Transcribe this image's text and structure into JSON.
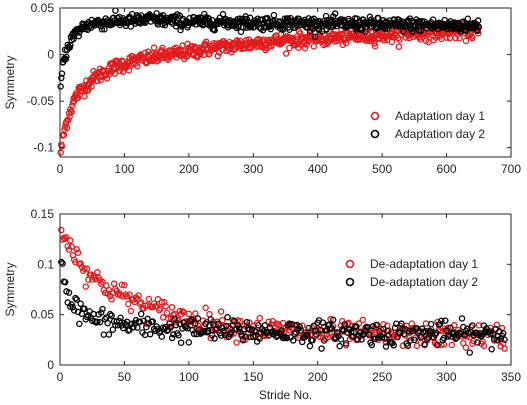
{
  "chart_data": [
    {
      "type": "scatter",
      "xlabel": "",
      "ylabel": "Symmetry",
      "xlim": [
        0,
        700
      ],
      "ylim": [
        -0.11,
        0.05
      ],
      "xticks": [
        0,
        100,
        200,
        300,
        400,
        500,
        600,
        700
      ],
      "yticks": [
        -0.1,
        -0.05,
        0,
        0.05
      ],
      "xtick_labels": [
        "0",
        "100",
        "200",
        "300",
        "400",
        "500",
        "600",
        "700"
      ],
      "ytick_labels": [
        "-0.1",
        "-0.05",
        "0",
        "0.05"
      ],
      "legend_position": "bottom-right",
      "series": [
        {
          "name": "Adaptation day 1",
          "color": "#e31a1c",
          "x": [
            1,
            3,
            5,
            8,
            12,
            16,
            20,
            25,
            30,
            40,
            50,
            60,
            75,
            90,
            110,
            130,
            150,
            175,
            200,
            225,
            250,
            275,
            300,
            325,
            350,
            375,
            400,
            425,
            450,
            475,
            500,
            525,
            550,
            575,
            600,
            625,
            650
          ],
          "y": [
            -0.104,
            -0.097,
            -0.088,
            -0.078,
            -0.068,
            -0.06,
            -0.052,
            -0.045,
            -0.04,
            -0.033,
            -0.027,
            -0.022,
            -0.017,
            -0.012,
            -0.008,
            -0.005,
            -0.002,
            0.0,
            0.003,
            0.006,
            0.008,
            0.01,
            0.012,
            0.014,
            0.015,
            0.016,
            0.017,
            0.018,
            0.019,
            0.02,
            0.021,
            0.022,
            0.023,
            0.024,
            0.024,
            0.025,
            0.025
          ]
        },
        {
          "name": "Adaptation day 2",
          "color": "#000000",
          "x": [
            1,
            3,
            5,
            8,
            12,
            16,
            20,
            25,
            30,
            35,
            40,
            50,
            60,
            75,
            90,
            110,
            130,
            145,
            175,
            200,
            250,
            300,
            350,
            400,
            450,
            500,
            550,
            600,
            650
          ],
          "y": [
            -0.035,
            -0.02,
            -0.008,
            0.0,
            0.008,
            0.014,
            0.019,
            0.023,
            0.026,
            0.029,
            0.031,
            0.033,
            0.034,
            0.035,
            0.036,
            0.036,
            0.037,
            0.038,
            0.036,
            0.035,
            0.035,
            0.034,
            0.034,
            0.033,
            0.033,
            0.032,
            0.032,
            0.031,
            0.031
          ]
        }
      ]
    },
    {
      "type": "scatter",
      "xlabel": "Stride No.",
      "ylabel": "Symmetry",
      "xlim": [
        0,
        350
      ],
      "ylim": [
        0,
        0.15
      ],
      "xticks": [
        0,
        50,
        100,
        150,
        200,
        250,
        300,
        350
      ],
      "yticks": [
        0,
        0.05,
        0.1,
        0.15
      ],
      "xtick_labels": [
        "0",
        "50",
        "100",
        "150",
        "200",
        "250",
        "300",
        "350"
      ],
      "ytick_labels": [
        "0",
        "0.05",
        "0.1",
        "0.15"
      ],
      "legend_position": "top-right",
      "series": [
        {
          "name": "De-adaptation day 1",
          "color": "#e31a1c",
          "x": [
            1,
            3,
            5,
            8,
            12,
            16,
            20,
            25,
            30,
            40,
            50,
            60,
            70,
            80,
            90,
            100,
            115,
            130,
            150,
            175,
            200,
            225,
            250,
            275,
            300,
            325,
            345
          ],
          "y": [
            0.135,
            0.13,
            0.124,
            0.118,
            0.11,
            0.102,
            0.095,
            0.088,
            0.082,
            0.075,
            0.068,
            0.062,
            0.057,
            0.053,
            0.049,
            0.046,
            0.042,
            0.039,
            0.036,
            0.034,
            0.032,
            0.031,
            0.03,
            0.03,
            0.029,
            0.029,
            0.028
          ]
        },
        {
          "name": "De-adaptation day 2",
          "color": "#000000",
          "x": [
            1,
            3,
            5,
            8,
            12,
            16,
            20,
            25,
            30,
            40,
            50,
            60,
            75,
            90,
            100,
            125,
            150,
            175,
            200,
            225,
            250,
            275,
            300,
            325,
            345
          ],
          "y": [
            0.1,
            0.088,
            0.075,
            0.065,
            0.058,
            0.053,
            0.049,
            0.046,
            0.044,
            0.042,
            0.04,
            0.038,
            0.037,
            0.036,
            0.035,
            0.034,
            0.033,
            0.033,
            0.032,
            0.032,
            0.031,
            0.031,
            0.031,
            0.03,
            0.03
          ]
        }
      ]
    }
  ]
}
